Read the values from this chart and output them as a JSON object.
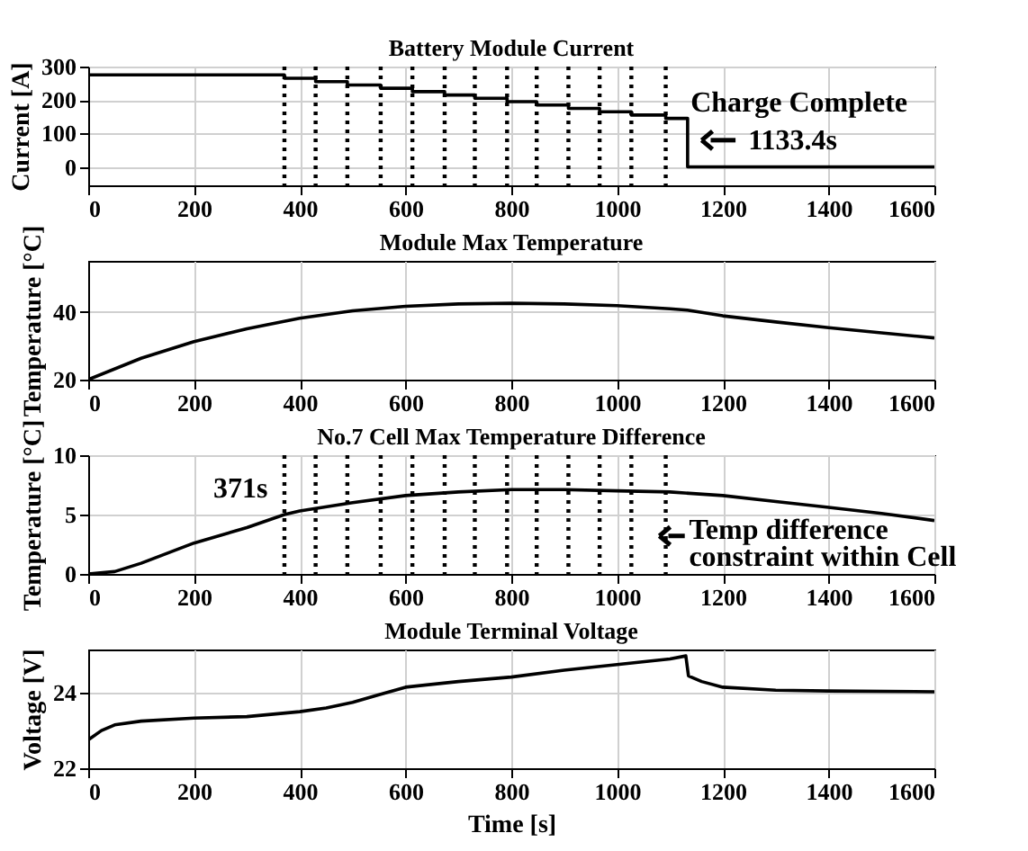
{
  "chart_data": [
    {
      "type": "step",
      "title": "Battery Module Current",
      "ylabel": "Current [A]",
      "x": [
        0,
        371,
        430,
        490,
        553,
        613,
        674,
        731,
        792,
        848,
        908,
        967,
        1027,
        1092,
        1133.4,
        1600
      ],
      "series": [
        {
          "color": "#000000",
          "values": [
            275,
            265,
            255,
            245,
            235,
            225,
            215,
            205,
            195,
            185,
            175,
            165,
            155,
            145,
            0,
            0
          ]
        }
      ],
      "xlim": [
        0,
        1600
      ],
      "xticks": [
        0,
        200,
        400,
        600,
        800,
        1000,
        1200,
        1400,
        1600
      ],
      "ylim": [
        -55,
        300
      ],
      "yticks": [
        0,
        100,
        200,
        300
      ],
      "grid": true,
      "legend": false,
      "ref_lines": [
        {
          "axis": "x",
          "value": 371,
          "color": "#000000",
          "line_style": "dotted"
        },
        {
          "axis": "x",
          "value": 430,
          "color": "#000000",
          "line_style": "dotted"
        },
        {
          "axis": "x",
          "value": 490,
          "color": "#000000",
          "line_style": "dotted"
        },
        {
          "axis": "x",
          "value": 553,
          "color": "#000000",
          "line_style": "dotted"
        },
        {
          "axis": "x",
          "value": 613,
          "color": "#000000",
          "line_style": "dotted"
        },
        {
          "axis": "x",
          "value": 674,
          "color": "#000000",
          "line_style": "dotted"
        },
        {
          "axis": "x",
          "value": 731,
          "color": "#000000",
          "line_style": "dotted"
        },
        {
          "axis": "x",
          "value": 792,
          "color": "#000000",
          "line_style": "dotted"
        },
        {
          "axis": "x",
          "value": 848,
          "color": "#000000",
          "line_style": "dotted"
        },
        {
          "axis": "x",
          "value": 908,
          "color": "#000000",
          "line_style": "dotted"
        },
        {
          "axis": "x",
          "value": 967,
          "color": "#000000",
          "line_style": "dotted"
        },
        {
          "axis": "x",
          "value": 1027,
          "color": "#000000",
          "line_style": "dotted"
        },
        {
          "axis": "x",
          "value": 1092,
          "color": "#000000",
          "line_style": "dotted"
        }
      ],
      "annotations": [
        "Charge Complete",
        "1133.4s"
      ]
    },
    {
      "type": "line",
      "title": "Module Max Temperature",
      "ylabel": "Temperature [°C]",
      "x": [
        0,
        100,
        200,
        300,
        400,
        500,
        600,
        700,
        800,
        900,
        1000,
        1100,
        1133,
        1200,
        1300,
        1400,
        1500,
        1600
      ],
      "series": [
        {
          "color": "#000000",
          "values": [
            20,
            26.3,
            31.2,
            35,
            38.1,
            40.3,
            41.6,
            42.3,
            42.5,
            42.3,
            41.8,
            40.9,
            40.5,
            38.8,
            37,
            35.3,
            33.8,
            32.3
          ]
        }
      ],
      "xlim": [
        0,
        1600
      ],
      "xticks": [
        0,
        200,
        400,
        600,
        800,
        1000,
        1200,
        1400,
        1600
      ],
      "ylim": [
        20,
        55
      ],
      "yticks": [
        20,
        40
      ],
      "grid": true,
      "legend": false
    },
    {
      "type": "line",
      "title": "No.7 Cell Max Temperature Difference",
      "ylabel": "Temperature [°C]",
      "x": [
        0,
        50,
        100,
        200,
        300,
        371,
        400,
        500,
        600,
        700,
        800,
        900,
        1000,
        1100,
        1200,
        1300,
        1400,
        1500,
        1600
      ],
      "series": [
        {
          "color": "#000000",
          "values": [
            0,
            0.2,
            0.9,
            2.6,
            3.9,
            5,
            5.3,
            6,
            6.6,
            6.9,
            7.1,
            7.1,
            7.0,
            6.9,
            6.6,
            6.1,
            5.6,
            5.1,
            4.5
          ]
        }
      ],
      "xlim": [
        0,
        1600
      ],
      "xticks": [
        0,
        200,
        400,
        600,
        800,
        1000,
        1200,
        1400,
        1600
      ],
      "ylim": [
        0,
        10
      ],
      "yticks": [
        0,
        5,
        10
      ],
      "grid": true,
      "legend": false,
      "ref_lines": [
        {
          "axis": "x",
          "value": 371,
          "color": "#000000",
          "line_style": "dotted"
        },
        {
          "axis": "x",
          "value": 430,
          "color": "#000000",
          "line_style": "dotted"
        },
        {
          "axis": "x",
          "value": 490,
          "color": "#000000",
          "line_style": "dotted"
        },
        {
          "axis": "x",
          "value": 553,
          "color": "#000000",
          "line_style": "dotted"
        },
        {
          "axis": "x",
          "value": 613,
          "color": "#000000",
          "line_style": "dotted"
        },
        {
          "axis": "x",
          "value": 674,
          "color": "#000000",
          "line_style": "dotted"
        },
        {
          "axis": "x",
          "value": 731,
          "color": "#000000",
          "line_style": "dotted"
        },
        {
          "axis": "x",
          "value": 792,
          "color": "#000000",
          "line_style": "dotted"
        },
        {
          "axis": "x",
          "value": 848,
          "color": "#000000",
          "line_style": "dotted"
        },
        {
          "axis": "x",
          "value": 908,
          "color": "#000000",
          "line_style": "dotted"
        },
        {
          "axis": "x",
          "value": 967,
          "color": "#000000",
          "line_style": "dotted"
        },
        {
          "axis": "x",
          "value": 1027,
          "color": "#000000",
          "line_style": "dotted"
        },
        {
          "axis": "x",
          "value": 1092,
          "color": "#000000",
          "line_style": "dotted"
        }
      ],
      "annotations": [
        "371s",
        "Temp difference\nconstraint within Cell"
      ]
    },
    {
      "type": "line",
      "title": "Module Terminal Voltage",
      "ylabel": "Voltage [V]",
      "xlabel": "Time [s]",
      "x": [
        0,
        25,
        50,
        100,
        200,
        300,
        400,
        450,
        500,
        550,
        600,
        700,
        800,
        900,
        1000,
        1100,
        1130,
        1135,
        1160,
        1200,
        1300,
        1400,
        1600
      ],
      "series": [
        {
          "color": "#000000",
          "values": [
            22.75,
            23,
            23.15,
            23.25,
            23.33,
            23.37,
            23.5,
            23.6,
            23.75,
            23.95,
            24.15,
            24.3,
            24.42,
            24.6,
            24.75,
            24.9,
            24.98,
            24.45,
            24.3,
            24.15,
            24.07,
            24.05,
            24.03
          ]
        }
      ],
      "xlim": [
        0,
        1600
      ],
      "xticks": [
        0,
        200,
        400,
        600,
        800,
        1000,
        1200,
        1400,
        1600
      ],
      "ylim": [
        22,
        25.15
      ],
      "yticks": [
        22,
        24
      ],
      "grid": true,
      "legend": false
    }
  ]
}
